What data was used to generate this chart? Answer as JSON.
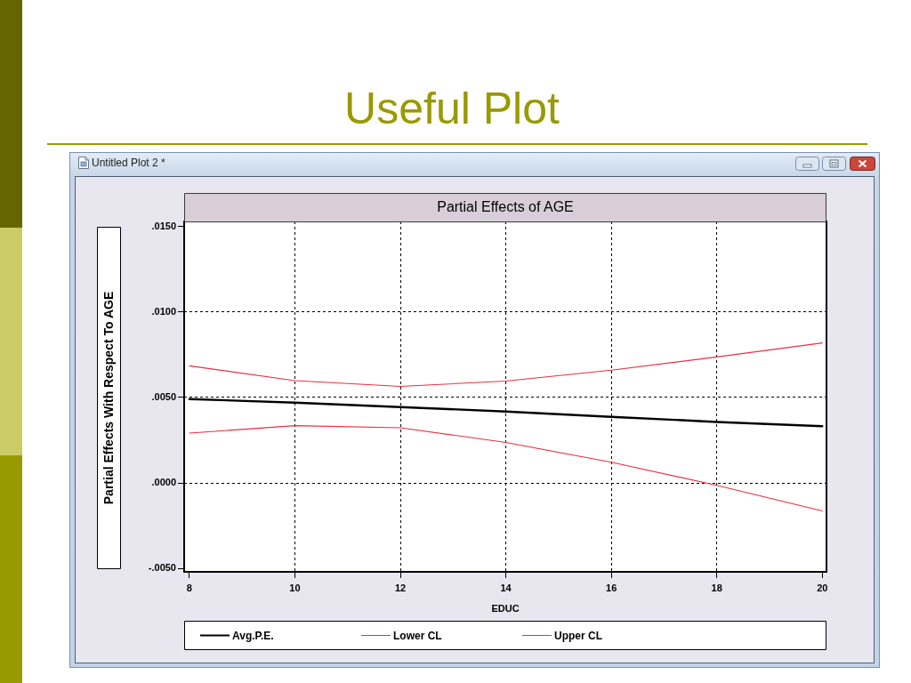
{
  "chart_data": {
    "type": "line",
    "title": "Partial Effects of AGE",
    "xlabel": "EDUC",
    "ylabel": "Partial Effects With Respect To AGE",
    "annotations": [
      "Useful Plot",
      "Untitled Plot 2 *"
    ],
    "x": [
      8,
      10,
      12,
      14,
      16,
      18,
      20
    ],
    "series": [
      {
        "name": "Avg.P.E.",
        "color": "#000000",
        "values": [
          0.00491,
          0.0047,
          0.00444,
          0.00418,
          0.00387,
          0.00357,
          0.00332
        ]
      },
      {
        "name": "Lower CL",
        "color": "#e8303f",
        "values": [
          0.00292,
          0.00335,
          0.00323,
          0.00237,
          0.00121,
          -0.00014,
          -0.00164
        ]
      },
      {
        "name": "Upper CL",
        "color": "#e8303f",
        "values": [
          0.00685,
          0.00599,
          0.00565,
          0.00596,
          0.0066,
          0.00737,
          0.00819
        ]
      }
    ],
    "xlim": [
      7.9,
      20.08
    ],
    "xticks": [
      8,
      10,
      12,
      14,
      16,
      18,
      20
    ],
    "ylim": [
      -0.0052,
      0.0153
    ],
    "yticks": [
      {
        "value": -0.005,
        "label": "-.0050"
      },
      {
        "value": 0,
        "label": ".0000"
      },
      {
        "value": 0.005,
        "label": ".0050"
      },
      {
        "value": 0.01,
        "label": ".0100"
      },
      {
        "value": 0.015,
        "label": ".0150"
      }
    ],
    "grid": true,
    "legend": "bottom"
  }
}
